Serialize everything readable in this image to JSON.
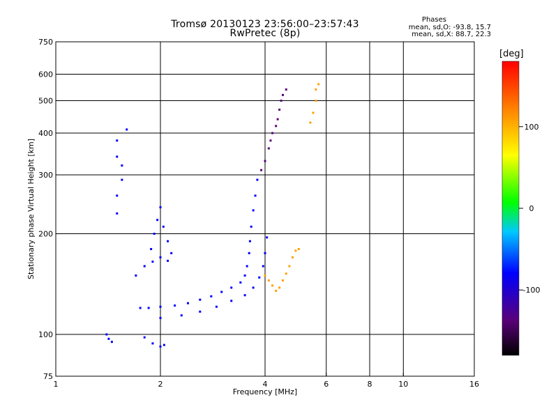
{
  "chart_data": {
    "type": "scatter",
    "title": "Tromsø 20130123 23:56:00–23:57:43",
    "subtitle": "RwPretec (8p)",
    "xlabel": "Frequency [MHz]",
    "ylabel": "Stationary phase Virtual Height [km]",
    "xscale": "log",
    "yscale": "log",
    "xlim": [
      1,
      16
    ],
    "ylim": [
      75,
      750
    ],
    "xticks": [
      1,
      2,
      4,
      6,
      8,
      10,
      16
    ],
    "xtick_labels": [
      "1",
      "2",
      "4",
      "6",
      "8",
      "10",
      "16"
    ],
    "yticks": [
      75,
      100,
      200,
      300,
      400,
      500,
      600,
      750
    ],
    "ytick_labels": [
      "75",
      "100",
      "200",
      "300",
      "400",
      "500",
      "600",
      "750"
    ],
    "grid_x": [
      2,
      4,
      6,
      8,
      10
    ],
    "grid_y": [
      100,
      200,
      300,
      400,
      500,
      600
    ],
    "stats": {
      "heading": "Phases",
      "o_line": "mean, sd,O: -93.8, 15.7",
      "x_line": "mean, sd,X: 88.7, 22.3"
    },
    "colorbar": {
      "unit": "[deg]",
      "range": [
        -180,
        180
      ],
      "ticks": [
        100,
        0,
        -100
      ],
      "tick_labels": [
        "100",
        "0",
        "-100"
      ]
    },
    "series": [
      {
        "phase": -100,
        "points": [
          [
            1.75,
            120
          ],
          [
            1.85,
            120
          ],
          [
            2.0,
            121
          ],
          [
            2.2,
            122
          ],
          [
            2.4,
            124
          ],
          [
            2.6,
            127
          ],
          [
            2.8,
            130
          ],
          [
            3.0,
            134
          ],
          [
            3.2,
            138
          ],
          [
            3.4,
            143
          ],
          [
            3.5,
            150
          ],
          [
            3.55,
            160
          ],
          [
            3.6,
            175
          ],
          [
            3.62,
            190
          ],
          [
            3.65,
            210
          ],
          [
            3.7,
            235
          ],
          [
            3.75,
            260
          ],
          [
            3.8,
            290
          ]
        ]
      },
      {
        "phase": -100,
        "points": [
          [
            2.0,
            112
          ],
          [
            2.3,
            114
          ],
          [
            2.6,
            117
          ],
          [
            2.9,
            121
          ],
          [
            3.2,
            126
          ],
          [
            3.5,
            131
          ],
          [
            3.7,
            138
          ],
          [
            3.85,
            148
          ],
          [
            3.95,
            160
          ],
          [
            4.0,
            175
          ],
          [
            4.05,
            195
          ]
        ]
      },
      {
        "phase": -110,
        "points": [
          [
            3.9,
            310
          ],
          [
            4.0,
            330
          ],
          [
            4.1,
            360
          ],
          [
            4.15,
            380
          ],
          [
            4.2,
            400
          ],
          [
            4.3,
            420
          ],
          [
            4.35,
            440
          ],
          [
            4.4,
            470
          ],
          [
            4.45,
            500
          ],
          [
            4.5,
            520
          ],
          [
            4.6,
            540
          ]
        ]
      },
      {
        "phase": -105,
        "points": [
          [
            1.88,
            180
          ],
          [
            1.92,
            200
          ],
          [
            1.96,
            220
          ],
          [
            2.0,
            240
          ],
          [
            2.04,
            210
          ],
          [
            2.1,
            190
          ],
          [
            2.15,
            175
          ],
          [
            1.7,
            150
          ],
          [
            1.8,
            160
          ],
          [
            1.9,
            165
          ],
          [
            2.0,
            170
          ],
          [
            2.1,
            166
          ]
        ]
      },
      {
        "phase": -100,
        "points": [
          [
            1.5,
            230
          ],
          [
            1.5,
            260
          ],
          [
            1.55,
            290
          ],
          [
            1.55,
            320
          ],
          [
            1.5,
            340
          ],
          [
            1.5,
            380
          ],
          [
            1.6,
            410
          ]
        ]
      },
      {
        "phase": -100,
        "points": [
          [
            1.4,
            100
          ],
          [
            1.42,
            97
          ],
          [
            1.45,
            95
          ],
          [
            1.8,
            98
          ],
          [
            1.9,
            94
          ],
          [
            2.0,
            92
          ],
          [
            2.05,
            93
          ]
        ]
      },
      {
        "phase": 100,
        "points": [
          [
            4.0,
            150
          ],
          [
            4.1,
            145
          ],
          [
            4.2,
            140
          ],
          [
            4.3,
            135
          ],
          [
            4.4,
            138
          ],
          [
            4.5,
            145
          ],
          [
            4.6,
            152
          ],
          [
            4.7,
            160
          ],
          [
            4.8,
            170
          ],
          [
            4.9,
            178
          ],
          [
            5.0,
            180
          ]
        ]
      },
      {
        "phase": 90,
        "points": [
          [
            5.4,
            430
          ],
          [
            5.5,
            460
          ],
          [
            5.6,
            500
          ],
          [
            5.6,
            540
          ],
          [
            5.7,
            560
          ]
        ]
      }
    ]
  }
}
